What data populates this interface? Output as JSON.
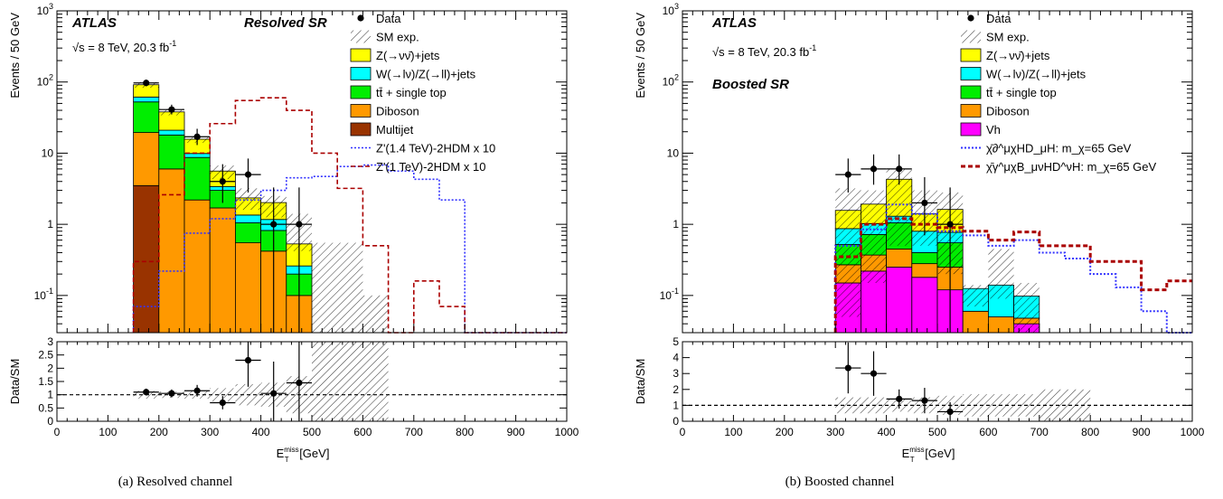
{
  "chart_data": [
    {
      "type": "bar",
      "caption": "(a) Resolved channel",
      "experiment": "ATLAS",
      "energy_label": "√s = 8 TeV, 20.3 fb",
      "energy_sup": "-1",
      "region": "Resolved SR",
      "ylabel": "Events / 50 GeV",
      "ratio_ylabel": "Data/SM",
      "xlabel": "E",
      "xlabel_sub": "T",
      "xlabel_sup": "miss",
      "xlabel_unit": " [GeV]",
      "xlim": [
        0,
        1000
      ],
      "ylim": [
        0.03,
        1000
      ],
      "yscale": "log",
      "ratio_ylim": [
        0,
        3
      ],
      "x_ticks": [
        0,
        100,
        200,
        300,
        400,
        500,
        600,
        700,
        800,
        900,
        1000
      ],
      "y_ticks": [
        {
          "v": 0.1,
          "m": "10",
          "e": "-1"
        },
        {
          "v": 1,
          "m": "1",
          "e": ""
        },
        {
          "v": 10,
          "m": "10",
          "e": ""
        },
        {
          "v": 100,
          "m": "10",
          "e": "2"
        },
        {
          "v": 1000,
          "m": "10",
          "e": "3"
        }
      ],
      "ratio_ticks": [
        "0",
        "0.5",
        "1",
        "1.5",
        "2",
        "2.5",
        "3"
      ],
      "legend": [
        {
          "kind": "dot",
          "label": "Data"
        },
        {
          "kind": "hatch",
          "label": "SM exp."
        },
        {
          "kind": "box",
          "color": "#ffff00",
          "label": "Z(→νν̄)+jets"
        },
        {
          "kind": "box",
          "color": "#00ffff",
          "label": "W(→lν)/Z(→ll)+jets"
        },
        {
          "kind": "box",
          "color": "#00ee00",
          "label": "tt̄ + single top"
        },
        {
          "kind": "box",
          "color": "#ff9900",
          "label": "Diboson"
        },
        {
          "kind": "box",
          "color": "#993300",
          "label": "Multijet"
        },
        {
          "kind": "line",
          "color": "#3333ff",
          "dash": "2,2",
          "label": "Z'(1.4 TeV)-2HDM x 10"
        },
        {
          "kind": "line",
          "color": "#aa0000",
          "dash": "5,3",
          "label": "Z'(1 TeV)-2HDM x 10"
        }
      ],
      "bin_edges": [
        150,
        200,
        250,
        300,
        350,
        400,
        450,
        500,
        550,
        600,
        650,
        700,
        750,
        800,
        850,
        900,
        950,
        1000
      ],
      "stack": [
        {
          "label": "Multijet",
          "color": "#993300",
          "values": [
            3.5,
            0,
            0,
            0,
            0,
            0,
            0,
            0,
            0,
            0,
            0,
            0,
            0,
            0,
            0,
            0,
            0
          ]
        },
        {
          "label": "Diboson",
          "color": "#ff9900",
          "values": [
            16,
            6,
            2.2,
            1.7,
            0.55,
            0.42,
            0.1,
            0.02,
            0.02,
            0,
            0,
            0,
            0,
            0,
            0,
            0,
            0
          ]
        },
        {
          "label": "tt̄ + single top",
          "color": "#00ee00",
          "values": [
            33,
            12,
            6.5,
            1.3,
            0.5,
            0.4,
            0.1,
            0,
            0,
            0,
            0,
            0,
            0,
            0,
            0,
            0,
            0
          ]
        },
        {
          "label": "W(→lν)/Z(→ll)+jets",
          "color": "#00ffff",
          "values": [
            9,
            3,
            1.2,
            0.4,
            0.3,
            0.35,
            0.06,
            0,
            0,
            0,
            0,
            0,
            0,
            0,
            0,
            0,
            0
          ]
        },
        {
          "label": "Z(→νν̄)+jets",
          "color": "#ffff00",
          "values": [
            30,
            17,
            5.8,
            2.2,
            1.0,
            0.85,
            0.27,
            0.005,
            0.01,
            0,
            0,
            0,
            0,
            0,
            0,
            0,
            0
          ]
        }
      ],
      "sm_hatch": [
        {
          "x0": 150,
          "x1": 200,
          "lo": 83,
          "hi": 100
        },
        {
          "x0": 200,
          "x1": 250,
          "lo": 34,
          "hi": 42
        },
        {
          "x0": 250,
          "x1": 300,
          "lo": 14,
          "hi": 17
        },
        {
          "x0": 300,
          "x1": 350,
          "lo": 4.3,
          "hi": 6.7
        },
        {
          "x0": 350,
          "x1": 400,
          "lo": 1.6,
          "hi": 3.2
        },
        {
          "x0": 400,
          "x1": 450,
          "lo": 1.25,
          "hi": 2.5
        },
        {
          "x0": 450,
          "x1": 500,
          "lo": 0.42,
          "hi": 1.4
        },
        {
          "x0": 500,
          "x1": 600,
          "lo": 0.03,
          "hi": 0.55
        },
        {
          "x0": 600,
          "x1": 650,
          "lo": 0.03,
          "hi": 0.1
        }
      ],
      "signals": [
        {
          "label": "Z'(1.4 TeV)-2HDM x 10",
          "color": "#3333ff",
          "dash": "2,2",
          "values": [
            0.07,
            0.22,
            0.75,
            1.2,
            2.2,
            3.0,
            4.5,
            4.7,
            6.5,
            6.8,
            5.6,
            4.3,
            2.2,
            0.03,
            0.03,
            0.03,
            0.03
          ]
        },
        {
          "label": "Z'(1 TeV)-2HDM x 10",
          "color": "#aa0000",
          "dash": "5,3",
          "values": [
            0.3,
            2.6,
            10,
            26,
            55,
            60,
            40,
            10,
            3.2,
            0.5,
            0.03,
            0.16,
            0.07,
            0.03,
            0.03,
            0.03,
            0.03
          ]
        }
      ],
      "data_points": [
        {
          "x": 175,
          "y": 97,
          "yerr_lo": 10,
          "yerr_hi": 11
        },
        {
          "x": 225,
          "y": 41,
          "yerr_lo": 6,
          "yerr_hi": 7
        },
        {
          "x": 275,
          "y": 17,
          "yerr_lo": 4,
          "yerr_hi": 5
        },
        {
          "x": 325,
          "y": 4,
          "yerr_lo": 2,
          "yerr_hi": 3
        },
        {
          "x": 375,
          "y": 5,
          "yerr_lo": 2.2,
          "yerr_hi": 3.4
        },
        {
          "x": 425,
          "y": 1,
          "yerr_lo": 0.97,
          "yerr_hi": 2.3
        },
        {
          "x": 475,
          "y": 1,
          "yerr_lo": 0.97,
          "yerr_hi": 2.3
        }
      ],
      "ratio_points": [
        {
          "x": 175,
          "y": 1.1,
          "err": 0.13
        },
        {
          "x": 225,
          "y": 1.05,
          "err": 0.15
        },
        {
          "x": 275,
          "y": 1.15,
          "err": 0.22
        },
        {
          "x": 325,
          "y": 0.7,
          "err": 0.25
        },
        {
          "x": 375,
          "y": 2.3,
          "err": 1.0
        },
        {
          "x": 425,
          "y": 1.05,
          "err": 1.2
        },
        {
          "x": 475,
          "y": 1.45,
          "err": 1.6
        }
      ],
      "ratio_hatch": [
        {
          "x0": 150,
          "x1": 200,
          "lo": 0.85,
          "hi": 1.15
        },
        {
          "x0": 200,
          "x1": 250,
          "lo": 0.88,
          "hi": 1.12
        },
        {
          "x0": 250,
          "x1": 300,
          "lo": 0.85,
          "hi": 1.15
        },
        {
          "x0": 300,
          "x1": 350,
          "lo": 0.75,
          "hi": 1.25
        },
        {
          "x0": 350,
          "x1": 400,
          "lo": 0.6,
          "hi": 1.4
        },
        {
          "x0": 400,
          "x1": 450,
          "lo": 0.55,
          "hi": 1.45
        },
        {
          "x0": 450,
          "x1": 500,
          "lo": 0.3,
          "hi": 1.7
        },
        {
          "x0": 500,
          "x1": 650,
          "lo": 0,
          "hi": 3
        }
      ]
    },
    {
      "type": "bar",
      "caption": "(b) Boosted channel",
      "experiment": "ATLAS",
      "energy_label": "√s = 8 TeV, 20.3 fb",
      "energy_sup": "-1",
      "region": "Boosted SR",
      "ylabel": "Events / 50 GeV",
      "ratio_ylabel": "Data/SM",
      "xlabel": "E",
      "xlabel_sub": "T",
      "xlabel_sup": "miss",
      "xlabel_unit": " [GeV]",
      "xlim": [
        0,
        1000
      ],
      "ylim": [
        0.03,
        1000
      ],
      "yscale": "log",
      "ratio_ylim": [
        0,
        5
      ],
      "x_ticks": [
        0,
        100,
        200,
        300,
        400,
        500,
        600,
        700,
        800,
        900,
        1000
      ],
      "y_ticks": [
        {
          "v": 0.1,
          "m": "10",
          "e": "-1"
        },
        {
          "v": 1,
          "m": "1",
          "e": ""
        },
        {
          "v": 10,
          "m": "10",
          "e": ""
        },
        {
          "v": 100,
          "m": "10",
          "e": "2"
        },
        {
          "v": 1000,
          "m": "10",
          "e": "3"
        }
      ],
      "ratio_ticks": [
        "0",
        "1",
        "2",
        "3",
        "4",
        "5"
      ],
      "legend": [
        {
          "kind": "dot",
          "label": "Data"
        },
        {
          "kind": "hatch",
          "label": "SM exp."
        },
        {
          "kind": "box",
          "color": "#ffff00",
          "label": "Z(→νν̄)+jets"
        },
        {
          "kind": "box",
          "color": "#00ffff",
          "label": "W(→lν)/Z(→ll)+jets"
        },
        {
          "kind": "box",
          "color": "#00ee00",
          "label": "tt̄ + single top"
        },
        {
          "kind": "box",
          "color": "#ff9900",
          "label": "Diboson"
        },
        {
          "kind": "box",
          "color": "#ff00ff",
          "label": "Vh"
        },
        {
          "kind": "line",
          "color": "#3333ff",
          "dash": "2,2",
          "width": 2,
          "label": "χ̄∂^μχHD_μH: m_χ=65 GeV"
        },
        {
          "kind": "line",
          "color": "#aa0000",
          "dash": "5,3",
          "width": 3,
          "label": "χ̄γ^μχB_μνHD^νH: m_χ=65 GeV"
        }
      ],
      "bin_edges": [
        300,
        350,
        400,
        450,
        500,
        550,
        600,
        650,
        700,
        750,
        800,
        850,
        900,
        950,
        1000
      ],
      "stack": [
        {
          "label": "Vh",
          "color": "#ff00ff",
          "values": [
            0.15,
            0.22,
            0.25,
            0.18,
            0.12,
            0.03,
            0.03,
            0.04,
            0,
            0,
            0,
            0,
            0,
            0
          ]
        },
        {
          "label": "Diboson",
          "color": "#ff9900",
          "values": [
            0.12,
            0.15,
            0.2,
            0.1,
            0.13,
            0.03,
            0.02,
            0.008,
            0,
            0,
            0,
            0,
            0,
            0
          ]
        },
        {
          "label": "tt̄ + single top",
          "color": "#00ee00",
          "values": [
            0.25,
            0.35,
            0.6,
            0.12,
            0.3,
            0,
            0,
            0,
            0,
            0,
            0,
            0,
            0,
            0
          ]
        },
        {
          "label": "W(→lν)/Z(→ll)+jets",
          "color": "#00ffff",
          "values": [
            0.35,
            0.3,
            0.25,
            0.4,
            0.22,
            0.065,
            0.09,
            0.05,
            0,
            0,
            0,
            0,
            0,
            0
          ]
        },
        {
          "label": "Z(→νν̄)+jets",
          "color": "#ffff00",
          "values": [
            0.7,
            0.9,
            3.0,
            0.6,
            0.85,
            0,
            0,
            0,
            0,
            0,
            0,
            0,
            0,
            0
          ]
        }
      ],
      "sm_hatch": [
        {
          "x0": 300,
          "x1": 350,
          "lo": 0.05,
          "hi": 3.2
        },
        {
          "x0": 350,
          "x1": 400,
          "lo": 0.15,
          "hi": 3.0
        },
        {
          "x0": 400,
          "x1": 450,
          "lo": 0.5,
          "hi": 6.0
        },
        {
          "x0": 450,
          "x1": 500,
          "lo": 0.5,
          "hi": 3.0
        },
        {
          "x0": 500,
          "x1": 550,
          "lo": 0.2,
          "hi": 2.8
        },
        {
          "x0": 550,
          "x1": 600,
          "lo": 0.07,
          "hi": 0.14
        },
        {
          "x0": 600,
          "x1": 650,
          "lo": 0.09,
          "hi": 0.45
        },
        {
          "x0": 650,
          "x1": 700,
          "lo": 0.03,
          "hi": 0.15
        }
      ],
      "signals": [
        {
          "label": "χ̄∂^μχHD_μH: m_χ=65 GeV",
          "color": "#3333ff",
          "dash": "2,2",
          "width": 2,
          "values": [
            0.5,
            0.85,
            1.9,
            1.4,
            0.8,
            0.7,
            0.5,
            0.6,
            0.4,
            0.33,
            0.2,
            0.13,
            0.06,
            0.03
          ]
        },
        {
          "label": "χ̄γ^μχB_μνHD^νH: m_χ=65 GeV",
          "color": "#aa0000",
          "dash": "5,3",
          "width": 3,
          "values": [
            0.35,
            1.0,
            1.2,
            1.0,
            0.9,
            0.8,
            0.6,
            0.78,
            0.5,
            0.5,
            0.3,
            0.3,
            0.12,
            0.16
          ]
        }
      ],
      "data_points": [
        {
          "x": 325,
          "y": 5,
          "yerr_lo": 2.2,
          "yerr_hi": 3.4
        },
        {
          "x": 375,
          "y": 6,
          "yerr_lo": 2.4,
          "yerr_hi": 3.6
        },
        {
          "x": 425,
          "y": 6,
          "yerr_lo": 2.4,
          "yerr_hi": 3.6
        },
        {
          "x": 475,
          "y": 2,
          "yerr_lo": 1.3,
          "yerr_hi": 2.6
        },
        {
          "x": 525,
          "y": 1,
          "yerr_lo": 0.97,
          "yerr_hi": 2.3
        }
      ],
      "ratio_points": [
        {
          "x": 325,
          "y": 3.35,
          "err": 1.6
        },
        {
          "x": 375,
          "y": 3.0,
          "err": 1.4
        },
        {
          "x": 425,
          "y": 1.4,
          "err": 0.6
        },
        {
          "x": 475,
          "y": 1.3,
          "err": 0.8
        },
        {
          "x": 525,
          "y": 0.6,
          "err": 0.6
        }
      ],
      "ratio_hatch": [
        {
          "x0": 300,
          "x1": 350,
          "lo": 0.5,
          "hi": 1.5
        },
        {
          "x0": 350,
          "x1": 400,
          "lo": 0.5,
          "hi": 1.5
        },
        {
          "x0": 400,
          "x1": 450,
          "lo": 0.6,
          "hi": 1.4
        },
        {
          "x0": 450,
          "x1": 500,
          "lo": 0.5,
          "hi": 1.5
        },
        {
          "x0": 500,
          "x1": 550,
          "lo": 0.4,
          "hi": 1.6
        },
        {
          "x0": 550,
          "x1": 700,
          "lo": 0.3,
          "hi": 1.7
        },
        {
          "x0": 700,
          "x1": 800,
          "lo": 0,
          "hi": 2
        }
      ]
    }
  ]
}
